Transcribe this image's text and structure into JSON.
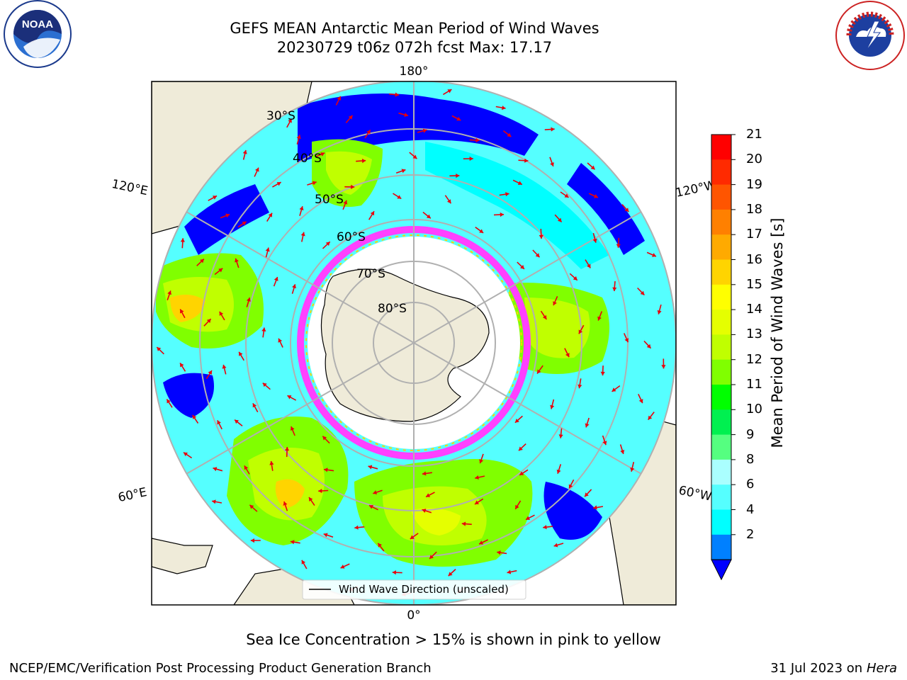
{
  "title": {
    "line1": "GEFS MEAN Antarctic Mean Period of Wind Waves",
    "line2": "20230729 t06z 072h fcst   Max: 17.17"
  },
  "map": {
    "lon_labels": {
      "top": "180°",
      "bottom": "0°",
      "upper_left": "120°E",
      "upper_right": "120°W",
      "lower_left": "60°E",
      "lower_right": "60°W"
    },
    "lat_labels": [
      "30°S",
      "40°S",
      "50°S",
      "60°S",
      "70°S",
      "80°S"
    ],
    "legend": "Wind Wave Direction (unscaled)",
    "arrow_color": "#e8000b"
  },
  "colorbar": {
    "label": "Mean Period of Wind Waves [s]",
    "ticks": [
      "21",
      "20",
      "19",
      "18",
      "17",
      "16",
      "15",
      "14",
      "13",
      "12",
      "11",
      "10",
      "9",
      "8",
      "6",
      "4",
      "2"
    ],
    "colors_top_to_bottom": [
      "#ff0000",
      "#ff2a00",
      "#ff5500",
      "#ff8000",
      "#ffaa00",
      "#ffd400",
      "#ffff00",
      "#e5ff00",
      "#c0ff00",
      "#80ff00",
      "#00ff00",
      "#00f050",
      "#55ff80",
      "#aaffff",
      "#55ffff",
      "#00ffff",
      "#0080ff"
    ],
    "under_color": "#0000ff"
  },
  "logos": {
    "noaa_text": "NOAA",
    "nws_text": "NATIONAL WEATHER SERVICE"
  },
  "footer": {
    "sea_ice_note": "Sea Ice Concentration > 15% is shown in pink to yellow",
    "credit_left": "NCEP/EMC/Verification Post Processing Product Generation Branch",
    "credit_date": "31 Jul 2023 on",
    "credit_host": "Hera"
  }
}
